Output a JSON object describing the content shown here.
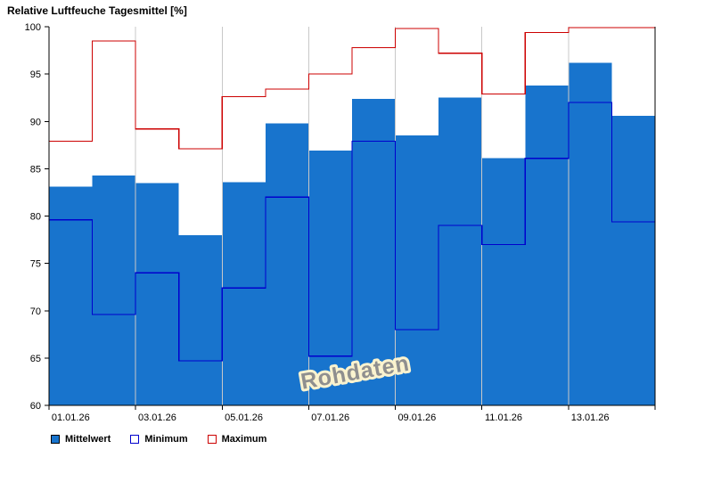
{
  "window": {
    "background": "#ffffff"
  },
  "chart_data": {
    "type": "bar",
    "title": "Relative Luftfeuche Tagesmittel [%]",
    "watermark": "Rohdaten",
    "ylim": [
      60,
      100
    ],
    "y_ticks": [
      60,
      65,
      70,
      75,
      80,
      85,
      90,
      95,
      100
    ],
    "x_tick_labels": [
      "01.01.26",
      "03.01.26",
      "05.01.26",
      "07.01.26",
      "09.01.26",
      "11.01.26",
      "13.01.26"
    ],
    "days": 14,
    "grid": "vertical-every-2-days",
    "legend_position": "bottom-left",
    "series": [
      {
        "name": "Mittelwert",
        "render": "bar",
        "color": "#1874CD",
        "values": [
          83.1,
          84.3,
          83.5,
          78.0,
          83.6,
          89.8,
          86.9,
          92.4,
          88.5,
          92.5,
          86.1,
          93.8,
          96.2,
          90.6
        ]
      },
      {
        "name": "Minimum",
        "render": "step",
        "color": "#0000CD",
        "values": [
          79.6,
          69.6,
          74.0,
          64.7,
          72.4,
          82.0,
          65.2,
          87.9,
          68.0,
          79.0,
          77.0,
          86.1,
          92.0,
          79.4
        ]
      },
      {
        "name": "Maximum",
        "render": "step",
        "color": "#CC0000",
        "values": [
          87.9,
          98.5,
          89.2,
          87.1,
          92.6,
          93.4,
          95.0,
          97.8,
          99.8,
          97.2,
          92.9,
          99.4,
          99.9,
          99.9
        ]
      }
    ]
  }
}
